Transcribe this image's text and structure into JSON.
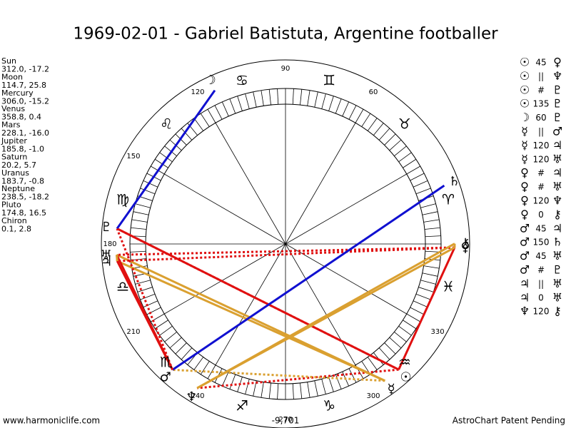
{
  "title": "1969-02-01 - Gabriel Batistuta, Argentine footballer",
  "planets": [
    {
      "name": "Sun",
      "coords": "312.0, -17.2",
      "glyph": "☉"
    },
    {
      "name": "Moon",
      "coords": "114.7, 25.8",
      "glyph": "☽"
    },
    {
      "name": "Mercury",
      "coords": "306.0, -15.2",
      "glyph": "☿"
    },
    {
      "name": "Venus",
      "coords": "358.8, 0.4",
      "glyph": "♀"
    },
    {
      "name": "Mars",
      "coords": "228.1, -16.0",
      "glyph": "♂"
    },
    {
      "name": "Jupiter",
      "coords": "185.8, -1.0",
      "glyph": "♃"
    },
    {
      "name": "Saturn",
      "coords": "20.2, 5.7",
      "glyph": "♄"
    },
    {
      "name": "Uranus",
      "coords": "183.7, -0.8",
      "glyph": "♅"
    },
    {
      "name": "Neptune",
      "coords": "238.5, -18.2",
      "glyph": "♆"
    },
    {
      "name": "Pluto",
      "coords": "174.8, 16.5",
      "glyph": "♇"
    },
    {
      "name": "Chiron",
      "coords": "0.1, 2.8",
      "glyph": "⚷"
    }
  ],
  "signs": [
    "♈",
    "♉",
    "♊",
    "♋",
    "♌",
    "♍",
    "♎",
    "♏",
    "♐",
    "♑",
    "♒",
    "♓"
  ],
  "degree_labels": [
    60,
    90,
    120,
    150,
    180,
    210,
    240,
    270,
    300,
    330
  ],
  "aspects": [
    {
      "from": "☉",
      "kind": "45",
      "to": "♀",
      "color": "#e01010",
      "dotted": false
    },
    {
      "from": "☉",
      "kind": "||",
      "to": "♆",
      "color": "#e01010",
      "dotted": true
    },
    {
      "from": "☉",
      "kind": "#",
      "to": "♇",
      "color": "#e01010",
      "dotted": true
    },
    {
      "from": "☉",
      "kind": "135",
      "to": "♇",
      "color": "#e01010",
      "dotted": false
    },
    {
      "from": "☽",
      "kind": "60",
      "to": "♇",
      "color": "#1010d0",
      "dotted": false
    },
    {
      "from": "☿",
      "kind": "||",
      "to": "♂",
      "color": "#daa030",
      "dotted": true
    },
    {
      "from": "☿",
      "kind": "120",
      "to": "♃",
      "color": "#daa030",
      "dotted": false
    },
    {
      "from": "☿",
      "kind": "120",
      "to": "♅",
      "color": "#daa030",
      "dotted": false
    },
    {
      "from": "♀",
      "kind": "#",
      "to": "♃",
      "color": "#e01010",
      "dotted": true
    },
    {
      "from": "♀",
      "kind": "#",
      "to": "♅",
      "color": "#e01010",
      "dotted": true
    },
    {
      "from": "♀",
      "kind": "120",
      "to": "♆",
      "color": "#daa030",
      "dotted": false
    },
    {
      "from": "♀",
      "kind": "0",
      "to": "⚷",
      "color": "#daa030",
      "dotted": false
    },
    {
      "from": "♂",
      "kind": "45",
      "to": "♃",
      "color": "#e01010",
      "dotted": false
    },
    {
      "from": "♂",
      "kind": "150",
      "to": "♄",
      "color": "#1010d0",
      "dotted": false
    },
    {
      "from": "♂",
      "kind": "45",
      "to": "♅",
      "color": "#e01010",
      "dotted": false
    },
    {
      "from": "♂",
      "kind": "#",
      "to": "♇",
      "color": "#e01010",
      "dotted": true
    },
    {
      "from": "♃",
      "kind": "||",
      "to": "♅",
      "color": "#daa030",
      "dotted": true
    },
    {
      "from": "♃",
      "kind": "0",
      "to": "♅",
      "color": "#daa030",
      "dotted": false
    },
    {
      "from": "♆",
      "kind": "120",
      "to": "⚷",
      "color": "#daa030",
      "dotted": false
    }
  ],
  "footer_left": "www.harmoniclife.com",
  "footer_center": "-9,701",
  "footer_right": "AstroChart Patent Pending"
}
